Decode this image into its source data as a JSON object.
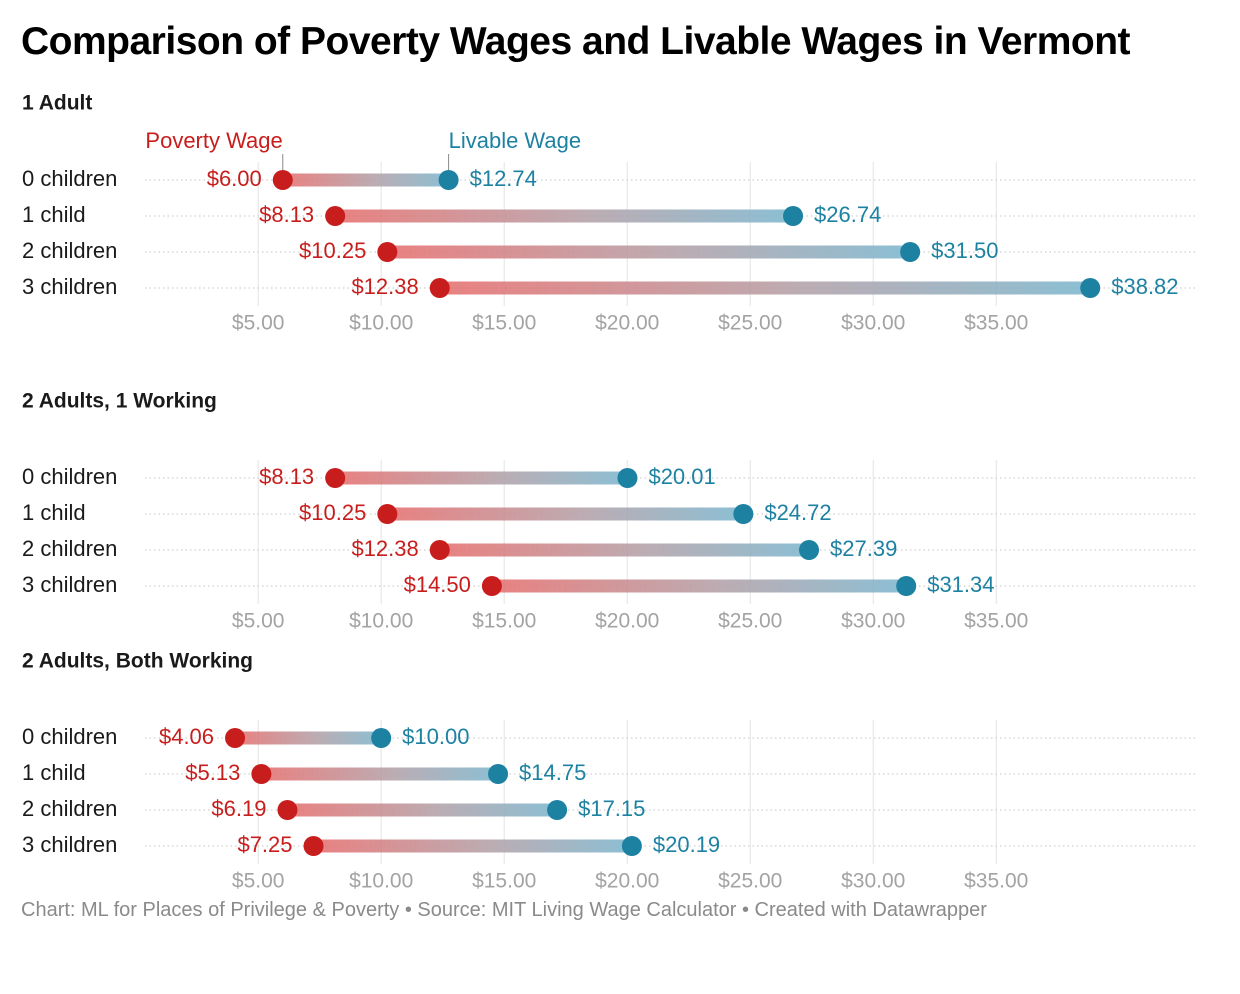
{
  "title": "Comparison of Poverty Wages and Livable Wages in Vermont",
  "footer": "Chart: ML for Places of Privilege & Poverty • Source: MIT Living Wage Calculator • Created with Datawrapper",
  "chart_data": {
    "type": "dumbbell",
    "series_names": [
      "Poverty Wage",
      "Livable Wage"
    ],
    "colors": {
      "poverty": "#c71e1d",
      "livable": "#1d81a2"
    },
    "xlim": [
      0.4,
      43.2
    ],
    "ticks": [
      5,
      10,
      15,
      20,
      25,
      30,
      35
    ],
    "tick_labels": [
      "$5.00",
      "$10.00",
      "$15.00",
      "$20.00",
      "$25.00",
      "$30.00",
      "$35.00"
    ],
    "grid": true,
    "panels": [
      {
        "title": "1 Adult",
        "rows": [
          {
            "label": "0 children",
            "poverty": 6.0,
            "poverty_label": "$6.00",
            "livable": 12.74,
            "livable_label": "$12.74"
          },
          {
            "label": "1 child",
            "poverty": 8.13,
            "poverty_label": "$8.13",
            "livable": 26.74,
            "livable_label": "$26.74"
          },
          {
            "label": "2 children",
            "poverty": 10.25,
            "poverty_label": "$10.25",
            "livable": 31.5,
            "livable_label": "$31.50"
          },
          {
            "label": "3 children",
            "poverty": 12.38,
            "poverty_label": "$12.38",
            "livable": 38.82,
            "livable_label": "$38.82"
          }
        ]
      },
      {
        "title": "2 Adults, 1 Working",
        "rows": [
          {
            "label": "0 children",
            "poverty": 8.13,
            "poverty_label": "$8.13",
            "livable": 20.01,
            "livable_label": "$20.01"
          },
          {
            "label": "1 child",
            "poverty": 10.25,
            "poverty_label": "$10.25",
            "livable": 24.72,
            "livable_label": "$24.72"
          },
          {
            "label": "2 children",
            "poverty": 12.38,
            "poverty_label": "$12.38",
            "livable": 27.39,
            "livable_label": "$27.39"
          },
          {
            "label": "3 children",
            "poverty": 14.5,
            "poverty_label": "$14.50",
            "livable": 31.34,
            "livable_label": "$31.34"
          }
        ]
      },
      {
        "title": "2 Adults, Both Working",
        "rows": [
          {
            "label": "0 children",
            "poverty": 4.06,
            "poverty_label": "$4.06",
            "livable": 10.0,
            "livable_label": "$10.00"
          },
          {
            "label": "1 child",
            "poverty": 5.13,
            "poverty_label": "$5.13",
            "livable": 14.75,
            "livable_label": "$14.75"
          },
          {
            "label": "2 children",
            "poverty": 6.19,
            "poverty_label": "$6.19",
            "livable": 17.15,
            "livable_label": "$17.15"
          },
          {
            "label": "3 children",
            "poverty": 7.25,
            "poverty_label": "$7.25",
            "livable": 20.19,
            "livable_label": "$20.19"
          }
        ]
      }
    ]
  }
}
